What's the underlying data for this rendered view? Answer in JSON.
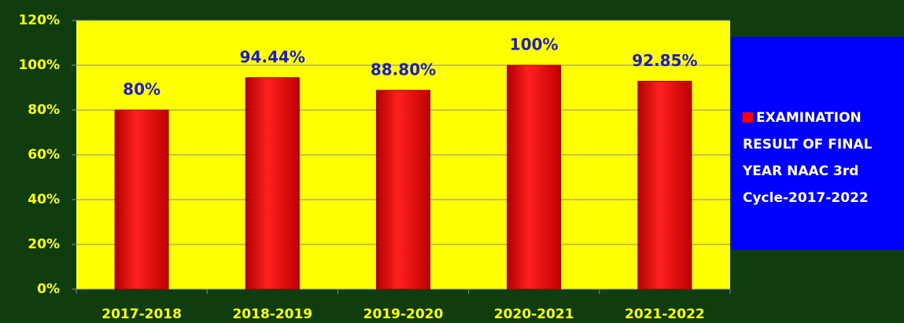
{
  "chart_data": {
    "type": "bar",
    "categories": [
      "2017-2018",
      "2018-2019",
      "2019-2020",
      "2020-2021",
      "2021-2022"
    ],
    "series": [
      {
        "name": "EXAMINATION RESULT OF FINAL YEAR NAAC 3rd Cycle-2017-2022",
        "color": "#ff0000",
        "values": [
          80,
          94.44,
          88.8,
          100,
          92.85
        ],
        "value_labels": [
          "80%",
          "94.44%",
          "88.80%",
          "100%",
          "92.85%"
        ]
      }
    ],
    "ylim": [
      0,
      120
    ],
    "yticks": [
      {
        "value": 0,
        "label": "0%"
      },
      {
        "value": 20,
        "label": "20%"
      },
      {
        "value": 40,
        "label": "40%"
      },
      {
        "value": 60,
        "label": "60%"
      },
      {
        "value": 80,
        "label": "80%"
      },
      {
        "value": 100,
        "label": "100%"
      },
      {
        "value": 120,
        "label": "120%"
      }
    ],
    "grid": true,
    "legend": "right"
  }
}
